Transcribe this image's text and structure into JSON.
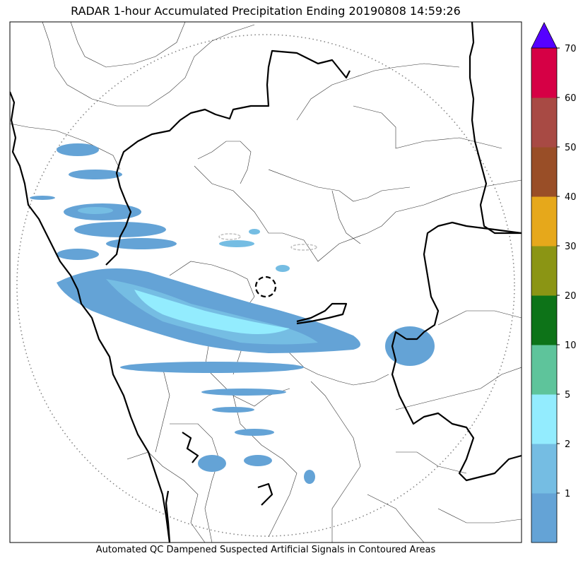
{
  "title": "RADAR 1-hour Accumulated Precipitation Ending 20190808 14:59:26",
  "caption": "Automated QC Dampened Suspected Artificial Signals in Contoured Areas",
  "colorbar": {
    "levels": [
      {
        "label": "",
        "color": "#64a3d6"
      },
      {
        "label": "1",
        "color": "#75bde3"
      },
      {
        "label": "2",
        "color": "#93ecfe"
      },
      {
        "label": "5",
        "color": "#5ec49b"
      },
      {
        "label": "10",
        "color": "#0d7318"
      },
      {
        "label": "20",
        "color": "#8b9514"
      },
      {
        "label": "30",
        "color": "#e6a81b"
      },
      {
        "label": "40",
        "color": "#994e27"
      },
      {
        "label": "50",
        "color": "#a84a44"
      },
      {
        "label": "60",
        "color": "#d60045"
      },
      {
        "label": "70",
        "color": ""
      }
    ],
    "extend_color": "#5500ff"
  },
  "legend_colors": {
    "light_rain": "#64a3d6",
    "moderate_rain": "#75bde3",
    "heavy_rain": "#93ecfe",
    "range_ring": "#808080",
    "boundary": "#000000"
  }
}
